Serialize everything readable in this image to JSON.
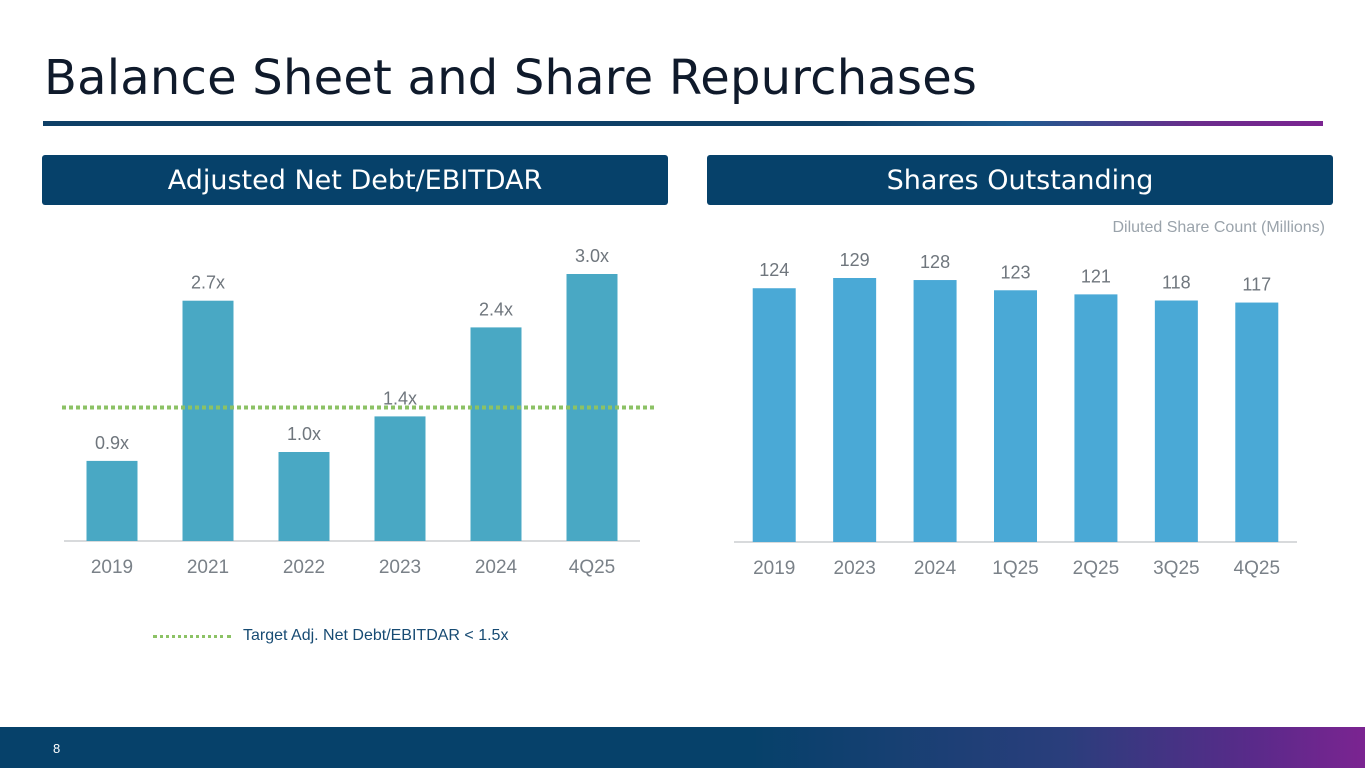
{
  "slide": {
    "title": "Balance Sheet and Share Repurchases",
    "page_number": "8"
  },
  "left_panel": {
    "header": "Adjusted Net Debt/EBITDAR",
    "legend_label": "Target Adj. Net Debt/EBITDAR < 1.5x"
  },
  "right_panel": {
    "header": "Shares Outstanding",
    "subtitle": "Diluted Share Count (Millions)"
  },
  "colors": {
    "header_bg": "#06416a",
    "bar_left": "#49a8c4",
    "bar_right": "#4aa9d6",
    "target_line": "#8cc265",
    "axis": "#b0b4b8"
  },
  "chart_data": [
    {
      "type": "bar",
      "title": "Adjusted Net Debt/EBITDAR",
      "categories": [
        "2019",
        "2021",
        "2022",
        "2023",
        "2024",
        "4Q25"
      ],
      "values": [
        0.9,
        2.7,
        1.0,
        1.4,
        2.4,
        3.0
      ],
      "value_labels": [
        "0.9x",
        "2.7x",
        "1.0x",
        "1.4x",
        "2.4x",
        "3.0x"
      ],
      "ylim": [
        0,
        3.0
      ],
      "reference_line": {
        "value": 1.5,
        "label": "Target Adj. Net Debt/EBITDAR < 1.5x",
        "style": "dotted"
      },
      "xlabel": "",
      "ylabel": "",
      "grid": false,
      "legend": "bottom-left"
    },
    {
      "type": "bar",
      "title": "Shares Outstanding",
      "subtitle": "Diluted Share Count (Millions)",
      "categories": [
        "2019",
        "2023",
        "2024",
        "1Q25",
        "2Q25",
        "3Q25",
        "4Q25"
      ],
      "values": [
        124,
        129,
        128,
        123,
        121,
        118,
        117
      ],
      "value_labels": [
        "124",
        "129",
        "128",
        "123",
        "121",
        "118",
        "117"
      ],
      "ylim": [
        0,
        129
      ],
      "xlabel": "",
      "ylabel": "",
      "grid": false
    }
  ]
}
